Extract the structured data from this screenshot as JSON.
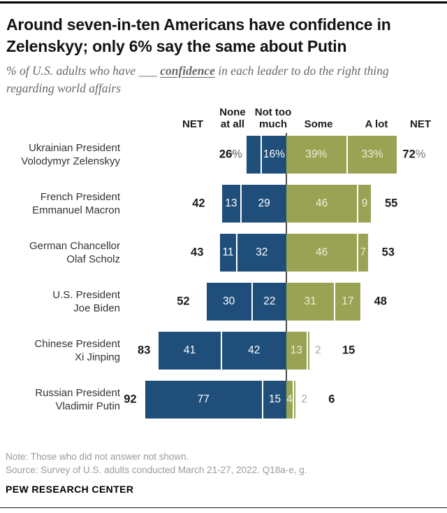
{
  "header": {
    "title_lines": [
      "Around seven-in-ten Americans have confidence in",
      "Zelenskyy; only 6% say the same about Putin"
    ],
    "subtitle": {
      "prefix": "% of U.S. adults who have",
      "blank": "___",
      "emphasis": "confidence",
      "suffix": "in each leader to do the right thing regarding world affairs"
    }
  },
  "chart_data": {
    "type": "bar",
    "variant": "diverging-stacked-horizontal",
    "unit": "%",
    "column_headers": {
      "net_left": "NET",
      "none_at_all": [
        "None",
        "at all"
      ],
      "not_too_much": [
        "Not too",
        "much"
      ],
      "some": "Some",
      "a_lot": "A lot",
      "net_right": "NET"
    },
    "categories": [
      "Ukrainian President Volodymyr Zelenskyy",
      "French President Emmanuel Macron",
      "German Chancellor Olaf Scholz",
      "U.S. President Joe Biden",
      "Chinese President Xi Jinping",
      "Russian President Vladimir Putin"
    ],
    "rows": [
      {
        "label_lines": [
          "Ukrainian President",
          "Volodymyr Zelenskyy"
        ],
        "net_negative": 26,
        "none_at_all": 10,
        "not_too_much": 16,
        "some": 39,
        "a_lot": 33,
        "net_positive": 72,
        "value_suffix": "%",
        "outside": {
          "none_at_all": true
        }
      },
      {
        "label_lines": [
          "French President",
          "Emmanuel Macron"
        ],
        "net_negative": 42,
        "none_at_all": 13,
        "not_too_much": 29,
        "some": 46,
        "a_lot": 9,
        "net_positive": 55,
        "value_suffix": "",
        "outside": {}
      },
      {
        "label_lines": [
          "German Chancellor",
          "Olaf Scholz"
        ],
        "net_negative": 43,
        "none_at_all": 11,
        "not_too_much": 32,
        "some": 46,
        "a_lot": 7,
        "net_positive": 53,
        "value_suffix": "",
        "outside": {}
      },
      {
        "label_lines": [
          "U.S. President",
          "Joe Biden"
        ],
        "net_negative": 52,
        "none_at_all": 30,
        "not_too_much": 22,
        "some": 31,
        "a_lot": 17,
        "net_positive": 48,
        "value_suffix": "",
        "outside": {}
      },
      {
        "label_lines": [
          "Chinese President",
          "Xi Jinping"
        ],
        "net_negative": 83,
        "none_at_all": 41,
        "not_too_much": 42,
        "some": 13,
        "a_lot": 2,
        "net_positive": 15,
        "value_suffix": "",
        "outside": {
          "a_lot": true
        }
      },
      {
        "label_lines": [
          "Russian President",
          "Vladimir Putin"
        ],
        "net_negative": 92,
        "none_at_all": 77,
        "not_too_much": 15,
        "some": 4,
        "a_lot": 2,
        "net_positive": 6,
        "value_suffix": "",
        "outside": {
          "a_lot": true
        }
      }
    ],
    "colors": {
      "negative": "#1F4E7A",
      "positive": "#9AA353",
      "inside_label_on_negative": "#FFFFFF",
      "inside_label_on_positive": "#EDEFDB",
      "outside_label": "#A6A6A6",
      "axis_line": "#4A4A4A"
    }
  },
  "footer": {
    "note": "Note: Those who did not answer not shown.",
    "source": "Source: Survey of U.S. adults conducted March 21-27, 2022. Q18a-e, g.",
    "brand": "PEW RESEARCH CENTER"
  }
}
